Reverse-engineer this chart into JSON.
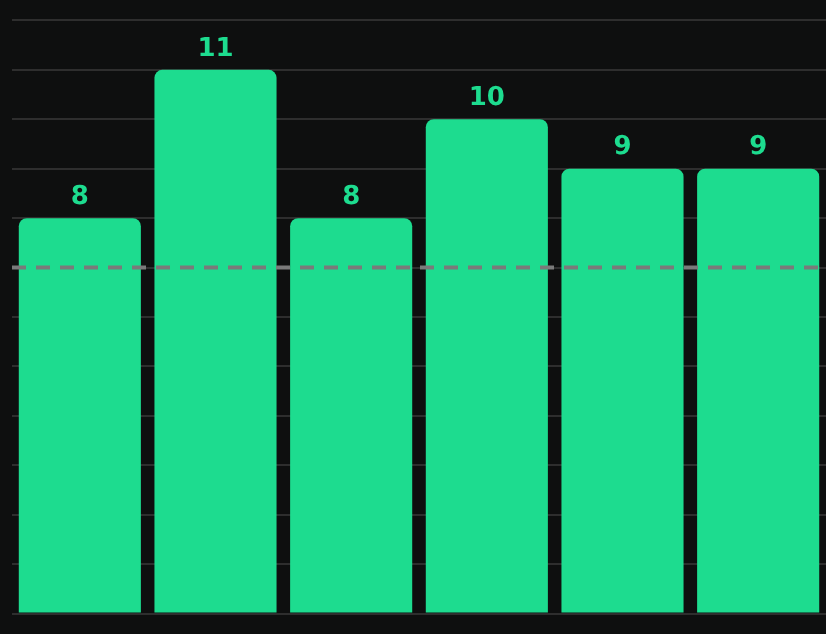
{
  "chart_data": {
    "type": "bar",
    "categories": [
      null,
      null,
      null,
      null,
      null,
      null
    ],
    "values": [
      8,
      11,
      8,
      10,
      9,
      9
    ],
    "color": "#1ddc8f",
    "data_labels": true,
    "ylim": [
      0,
      12
    ],
    "yticks": [
      {
        "value": 0,
        "label": null
      },
      {
        "value": 1,
        "label": null
      },
      {
        "value": 2,
        "label": null
      },
      {
        "value": 3,
        "label": null
      },
      {
        "value": 4,
        "label": null
      },
      {
        "value": 5,
        "label": null
      },
      {
        "value": 6,
        "label": null
      },
      {
        "value": 7,
        "label": null
      },
      {
        "value": 8,
        "label": null
      },
      {
        "value": 9,
        "label": null
      },
      {
        "value": 10,
        "label": null
      },
      {
        "value": 11,
        "label": null
      },
      {
        "value": 12,
        "label": null
      }
    ],
    "grid": "y",
    "ref_lines": [
      {
        "axis": "y",
        "value": 7,
        "color": "#7a7a7a",
        "line_style": "dashed"
      }
    ]
  }
}
